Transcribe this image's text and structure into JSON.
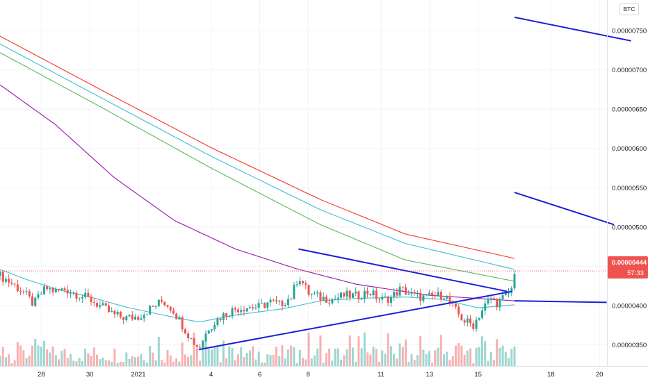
{
  "currency_label": "BTC",
  "price_label": {
    "value": "0.00000444",
    "countdown": "57:33"
  },
  "colors": {
    "up": "#26a69a",
    "down": "#ef5350",
    "ma_red": "#f44336",
    "ma_cyan": "#4dc2d4",
    "ma_green": "#66bb6a",
    "ma_purple": "#9c27b0",
    "trendline": "#1e1ed6",
    "price_bg": "#ef5350"
  },
  "chart_data": {
    "type": "candlestick",
    "quote": "BTC",
    "y_range": [
      3.23e-06,
      7.89e-06
    ],
    "y_ticks": [
      {
        "value": 7.5e-06,
        "label": "0.00000750"
      },
      {
        "value": 7e-06,
        "label": "0.00000700"
      },
      {
        "value": 6.5e-06,
        "label": "0.00000650"
      },
      {
        "value": 6e-06,
        "label": "0.00000600"
      },
      {
        "value": 5.5e-06,
        "label": "0.00000550"
      },
      {
        "value": 5e-06,
        "label": "0.00000500"
      },
      {
        "value": 4.5e-06,
        "label": "0.00000450"
      },
      {
        "value": 4e-06,
        "label": "0.00000400"
      },
      {
        "value": 3.5e-06,
        "label": "0.00000350"
      }
    ],
    "x_range": [
      26.3,
      47.5
    ],
    "x_ticks": [
      {
        "t": 28,
        "label": "28"
      },
      {
        "t": 30,
        "label": "30"
      },
      {
        "t": 32,
        "label": "2021"
      },
      {
        "t": 35,
        "label": "4"
      },
      {
        "t": 37,
        "label": "6"
      },
      {
        "t": 39,
        "label": "8"
      },
      {
        "t": 42,
        "label": "11"
      },
      {
        "t": 44,
        "label": "13"
      },
      {
        "t": 46,
        "label": "15"
      },
      {
        "t": 49,
        "label": "18"
      },
      {
        "t": 51,
        "label": "20"
      }
    ],
    "x_unit": "days from 1 Dec 2020 (32 = 1 Jan 2021)",
    "price_path": [
      [
        26.3,
        4.38e-06
      ],
      [
        26.8,
        4.28e-06
      ],
      [
        27.3,
        4.16e-06
      ],
      [
        27.7,
        4.01e-06
      ],
      [
        27.9,
        4.12e-06
      ],
      [
        28.2,
        4.22e-06
      ],
      [
        28.6,
        4.18e-06
      ],
      [
        29.0,
        4.21e-06
      ],
      [
        29.5,
        4.14e-06
      ],
      [
        30.0,
        4.08e-06
      ],
      [
        30.5,
        3.98e-06
      ],
      [
        31.0,
        3.88e-06
      ],
      [
        31.5,
        3.84e-06
      ],
      [
        32.0,
        3.86e-06
      ],
      [
        32.5,
        3.96e-06
      ],
      [
        33.0,
        4.06e-06
      ],
      [
        33.4,
        3.96e-06
      ],
      [
        33.8,
        3.76e-06
      ],
      [
        34.2,
        3.56e-06
      ],
      [
        34.5,
        3.46e-06
      ],
      [
        34.9,
        3.72e-06
      ],
      [
        35.4,
        3.86e-06
      ],
      [
        36.0,
        3.96e-06
      ],
      [
        36.5,
        3.98e-06
      ],
      [
        37.0,
        3.98e-06
      ],
      [
        37.4,
        4.05e-06
      ],
      [
        37.8,
        4.01e-06
      ],
      [
        38.3,
        4.11e-06
      ],
      [
        38.6,
        4.38e-06
      ],
      [
        39.0,
        4.16e-06
      ],
      [
        39.5,
        4.1e-06
      ],
      [
        40.0,
        4.08e-06
      ],
      [
        40.5,
        4.13e-06
      ],
      [
        41.0,
        4.12e-06
      ],
      [
        41.5,
        4.18e-06
      ],
      [
        42.0,
        4.07e-06
      ],
      [
        42.4,
        4.1e-06
      ],
      [
        42.8,
        4.21e-06
      ],
      [
        43.3,
        4.13e-06
      ],
      [
        43.8,
        4.1e-06
      ],
      [
        44.2,
        4.12e-06
      ],
      [
        44.6,
        4.14e-06
      ],
      [
        45.0,
        3.96e-06
      ],
      [
        45.4,
        3.81e-06
      ],
      [
        45.8,
        3.75e-06
      ],
      [
        46.1,
        3.91e-06
      ],
      [
        46.5,
        4.1e-06
      ],
      [
        46.8,
        4.03e-06
      ],
      [
        47.1,
        4.11e-06
      ],
      [
        47.4,
        4.21e-06
      ],
      [
        47.5,
        4.44e-06
      ]
    ],
    "series": [
      {
        "kind": "ma",
        "color": "ma_red",
        "values": [
          [
            26.3,
            7.43e-06
          ],
          [
            30.5,
            6.74e-06
          ],
          [
            35.0,
            6.01e-06
          ],
          [
            39.5,
            5.35e-06
          ],
          [
            43.0,
            4.91e-06
          ],
          [
            47.5,
            4.6e-06
          ]
        ]
      },
      {
        "kind": "ma",
        "color": "ma_cyan",
        "values": [
          [
            26.3,
            7.33e-06
          ],
          [
            30.5,
            6.64e-06
          ],
          [
            35.0,
            5.9e-06
          ],
          [
            39.5,
            5.22e-06
          ],
          [
            43.0,
            4.79e-06
          ],
          [
            47.5,
            4.46e-06
          ]
        ]
      },
      {
        "kind": "ma",
        "color": "ma_green",
        "values": [
          [
            26.3,
            7.22e-06
          ],
          [
            30.5,
            6.52e-06
          ],
          [
            35.0,
            5.75e-06
          ],
          [
            39.5,
            5.03e-06
          ],
          [
            43.0,
            4.58e-06
          ],
          [
            47.5,
            4.31e-06
          ]
        ]
      },
      {
        "kind": "ma",
        "color": "ma_purple",
        "values": [
          [
            26.3,
            6.81e-06
          ],
          [
            28.6,
            6.3e-06
          ],
          [
            31.0,
            5.63e-06
          ],
          [
            33.5,
            5.08e-06
          ],
          [
            36.0,
            4.72e-06
          ],
          [
            38.5,
            4.47e-06
          ],
          [
            41.0,
            4.27e-06
          ],
          [
            44.0,
            4.13e-06
          ],
          [
            47.5,
            4.06e-06
          ]
        ]
      },
      {
        "kind": "ma",
        "color": "ma_cyan",
        "values": [
          [
            26.3,
            4.46e-06
          ],
          [
            27.5,
            4.32e-06
          ],
          [
            28.6,
            4.21e-06
          ],
          [
            30.0,
            4.11e-06
          ],
          [
            31.5,
            3.98e-06
          ],
          [
            33.0,
            3.88e-06
          ],
          [
            34.5,
            3.79e-06
          ],
          [
            36.0,
            3.88e-06
          ],
          [
            38.0,
            3.96e-06
          ],
          [
            39.5,
            4.06e-06
          ],
          [
            41.0,
            4.09e-06
          ],
          [
            43.0,
            4.11e-06
          ],
          [
            44.5,
            4.08e-06
          ],
          [
            46.0,
            3.97e-06
          ],
          [
            47.5,
            4.01e-06
          ]
        ]
      }
    ],
    "trendlines": [
      {
        "from": [
          38.6,
          4.72e-06
        ],
        "to": [
          47.2,
          4.18e-06
        ]
      },
      {
        "from": [
          34.5,
          3.44e-06
        ],
        "to": [
          47.4,
          4.18e-06
        ]
      },
      {
        "from": [
          47.5,
          4.06e-06
        ],
        "to": [
          51.3,
          4.04e-06
        ]
      },
      {
        "from": [
          47.5,
          7.67e-06
        ],
        "to": [
          52.3,
          7.37e-06
        ]
      },
      {
        "from": [
          47.5,
          5.44e-06
        ],
        "to": [
          51.6,
          5.03e-06
        ]
      }
    ]
  }
}
